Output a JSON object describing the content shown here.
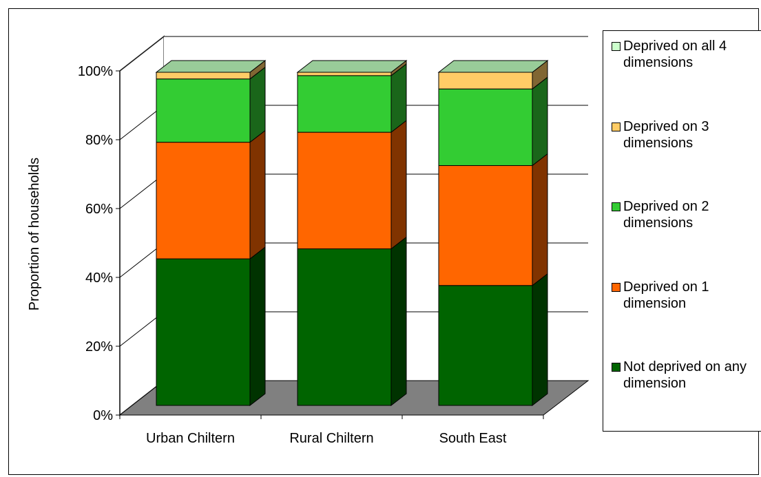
{
  "chart_data": {
    "type": "bar",
    "stacked": true,
    "percent_stacked": true,
    "three_d": true,
    "categories": [
      "Urban Chiltern",
      "Rural Chiltern",
      "South East"
    ],
    "series": [
      {
        "name": "Not deprived on any dimension",
        "values": [
          44,
          47,
          36
        ],
        "color": "#006400",
        "side_color": "#003300"
      },
      {
        "name": "Deprived on 1 dimension",
        "values": [
          35,
          35,
          36
        ],
        "color": "#ff6600",
        "side_color": "#803300"
      },
      {
        "name": "Deprived on 2 dimensions",
        "values": [
          19,
          17,
          23
        ],
        "color": "#33cc33",
        "side_color": "#1a661a"
      },
      {
        "name": "Deprived on 3 dimensions",
        "values": [
          2,
          1,
          5
        ],
        "color": "#ffcc66",
        "side_color": "#806633"
      },
      {
        "name": "Deprived on all 4 dimensions",
        "values": [
          0,
          0,
          0
        ],
        "color": "#ccffcc",
        "side_color": "#667f66"
      }
    ],
    "ylabel": "Proportion of households",
    "xlabel": "",
    "yticks": [
      "0%",
      "20%",
      "40%",
      "60%",
      "80%",
      "100%"
    ],
    "ylim": [
      0,
      100
    ],
    "grid": true,
    "legend_position": "right"
  },
  "colors": {
    "floor": "#808080",
    "bar_top": "#99cc99",
    "gridline": "#000000",
    "wall": "#ffffff"
  }
}
